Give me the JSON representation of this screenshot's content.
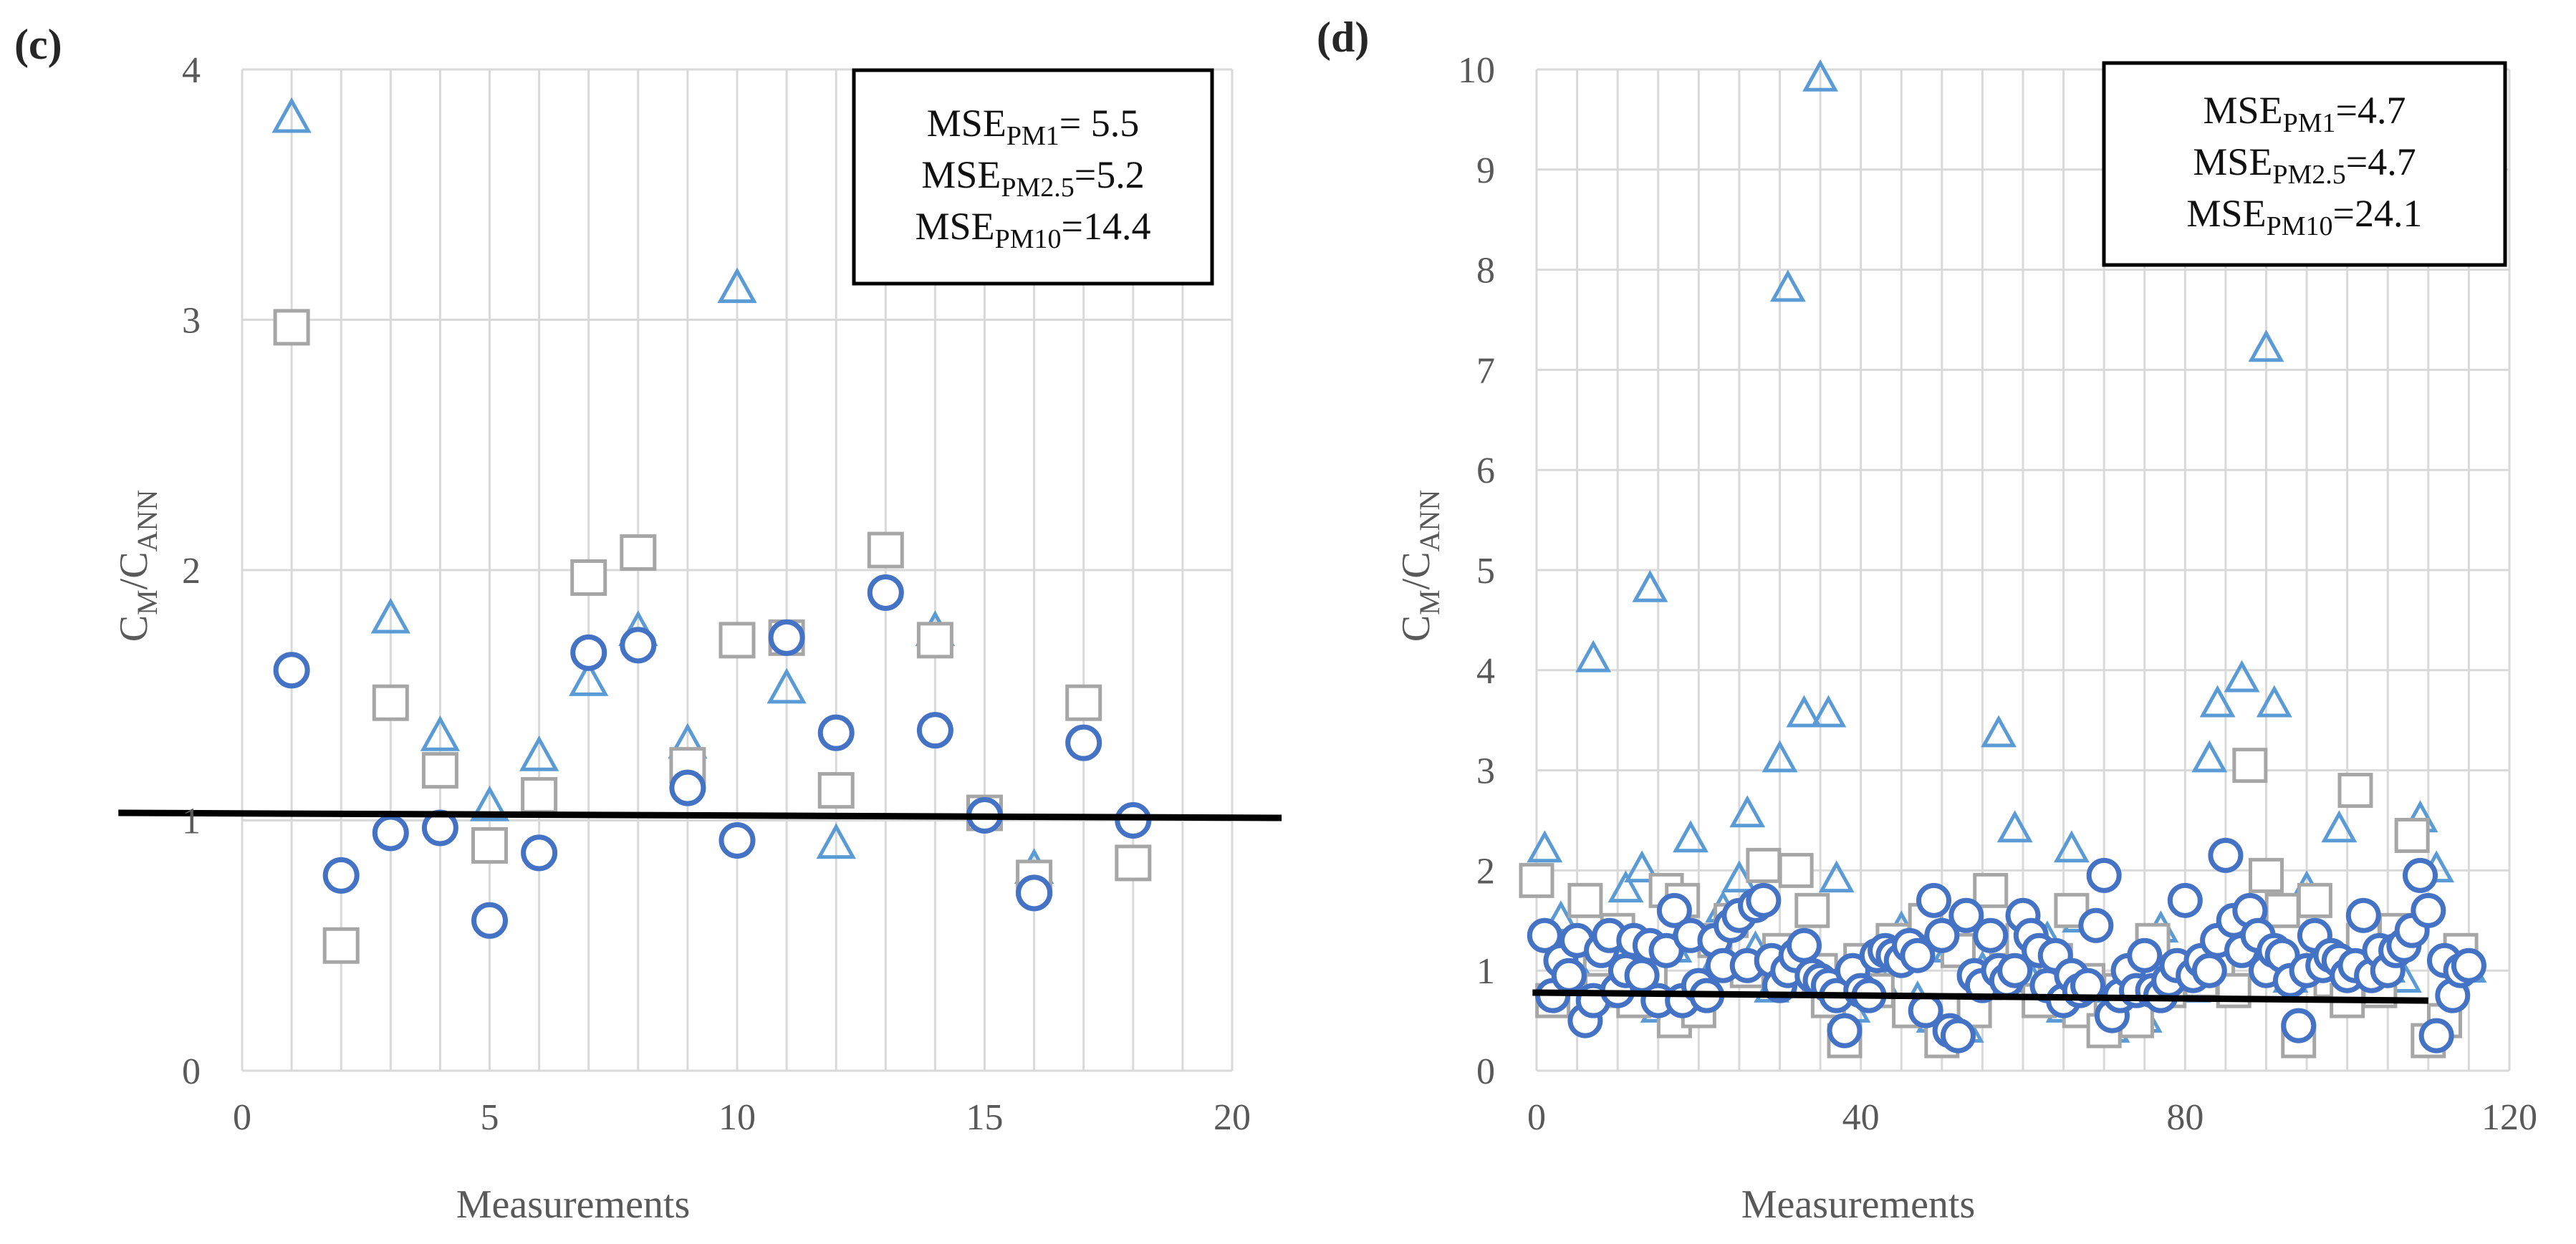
{
  "colors": {
    "pm1": "#5b9bd5",
    "pm25": "#a6a6a6",
    "pm10": "#4472c4",
    "trend": "#000000",
    "grid": "#d9d9d9"
  },
  "chart_data": [
    {
      "type": "scatter",
      "panel_label": "(c)",
      "xlabel": "Measurements",
      "ylabel_main": "C",
      "ylabel_sub1": "M",
      "ylabel_mid": "/C",
      "ylabel_sub2": "ANN",
      "xlim": [
        0,
        20
      ],
      "ylim": [
        0,
        4
      ],
      "xticks": [
        0,
        5,
        10,
        15,
        20
      ],
      "yticks": [
        0,
        1,
        2,
        3,
        4
      ],
      "grid": true,
      "mse": [
        {
          "base": "MSE",
          "sub": "PM1",
          "value": "= 5.5"
        },
        {
          "base": "MSE",
          "sub": "PM2.5",
          "value": "=5.2"
        },
        {
          "base": "MSE",
          "sub": "PM10",
          "value": "=14.4"
        }
      ],
      "series": [
        {
          "name": "PM1",
          "marker": "triangle",
          "x": [
            1,
            3,
            4,
            5,
            6,
            7,
            8,
            9,
            10,
            11,
            12,
            14,
            16
          ],
          "y": [
            3.8,
            1.8,
            1.33,
            1.05,
            1.25,
            1.55,
            1.75,
            1.3,
            3.12,
            1.52,
            0.9,
            1.75,
            0.8
          ]
        },
        {
          "name": "PM2.5",
          "marker": "square",
          "x": [
            1,
            2,
            3,
            4,
            5,
            6,
            7,
            8,
            9,
            10,
            11,
            12,
            13,
            14,
            15,
            16,
            17,
            18
          ],
          "y": [
            2.97,
            0.5,
            1.47,
            1.2,
            0.9,
            1.1,
            1.97,
            2.07,
            1.22,
            1.72,
            1.73,
            1.12,
            2.08,
            1.72,
            1.03,
            0.77,
            1.47,
            0.83
          ]
        },
        {
          "name": "PM10",
          "marker": "circle",
          "x": [
            1,
            2,
            3,
            4,
            5,
            6,
            7,
            8,
            9,
            10,
            11,
            12,
            13,
            14,
            15,
            16,
            17,
            18
          ],
          "y": [
            1.6,
            0.78,
            0.95,
            0.97,
            0.6,
            0.87,
            1.67,
            1.7,
            1.13,
            0.92,
            1.73,
            1.35,
            1.91,
            1.36,
            1.02,
            0.71,
            1.31,
            1.0
          ]
        }
      ],
      "trendline": {
        "x": [
          -2.5,
          21
        ],
        "y": [
          1.03,
          1.01
        ]
      }
    },
    {
      "type": "scatter",
      "panel_label": "(d)",
      "xlabel": "Measurements",
      "ylabel_main": "C",
      "ylabel_sub1": "M",
      "ylabel_mid": "/C",
      "ylabel_sub2": "ANN",
      "xlim": [
        0,
        120
      ],
      "ylim": [
        0,
        10
      ],
      "xticks": [
        0,
        40,
        80,
        120
      ],
      "yticks": [
        0,
        1,
        2,
        3,
        4,
        5,
        6,
        7,
        8,
        9,
        10
      ],
      "grid": true,
      "mse": [
        {
          "base": "MSE",
          "sub": "PM1",
          "value": "=4.7"
        },
        {
          "base": "MSE",
          "sub": "PM2.5",
          "value": "=4.7"
        },
        {
          "base": "MSE",
          "sub": "PM10",
          "value": "=24.1"
        }
      ],
      "series": [
        {
          "name": "PM1",
          "marker": "triangle",
          "x": [
            1,
            3,
            5,
            7,
            9,
            11,
            13,
            14,
            15,
            17,
            19,
            21,
            23,
            25,
            26,
            27,
            29,
            30,
            31,
            33,
            35,
            36,
            37,
            39,
            41,
            43,
            45,
            47,
            49,
            51,
            53,
            55,
            57,
            59,
            61,
            63,
            65,
            66,
            67,
            69,
            71,
            73,
            75,
            77,
            79,
            81,
            83,
            84,
            85,
            87,
            88,
            90,
            91,
            93,
            95,
            97,
            99,
            101,
            103,
            105,
            107,
            109,
            111,
            113,
            115
          ],
          "y": [
            2.2,
            1.5,
            1.0,
            4.1,
            1.3,
            1.8,
            2.0,
            4.8,
            0.6,
            1.2,
            2.3,
            0.9,
            1.6,
            1.9,
            2.55,
            1.2,
            0.8,
            3.1,
            7.8,
            3.55,
            9.9,
            3.55,
            1.9,
            0.6,
            1.1,
            0.8,
            1.4,
            0.7,
            0.5,
            1.2,
            0.4,
            1.0,
            3.35,
            2.4,
            0.9,
            1.3,
            0.6,
            2.2,
            1.5,
            0.8,
            0.4,
            0.6,
            0.5,
            1.4,
            0.9,
            0.8,
            3.1,
            3.65,
            1.2,
            3.9,
            1.6,
            7.2,
            3.65,
            0.9,
            1.8,
            1.2,
            2.4,
            0.8,
            1.3,
            1.0,
            0.9,
            2.5,
            2.0,
            1.1,
            1.0
          ]
        },
        {
          "name": "PM2.5",
          "marker": "square",
          "x": [
            0,
            2,
            4,
            6,
            8,
            10,
            12,
            14,
            16,
            17,
            18,
            20,
            22,
            24,
            26,
            28,
            30,
            31,
            32,
            34,
            35,
            36,
            38,
            40,
            42,
            44,
            46,
            48,
            50,
            52,
            54,
            56,
            57,
            58,
            60,
            62,
            64,
            66,
            67,
            68,
            70,
            72,
            74,
            76,
            78,
            80,
            82,
            84,
            86,
            88,
            90,
            92,
            94,
            96,
            98,
            100,
            101,
            102,
            104,
            106,
            108,
            110,
            112,
            114
          ],
          "y": [
            1.9,
            0.7,
            1.2,
            1.7,
            0.8,
            1.4,
            0.7,
            1.0,
            1.8,
            0.5,
            1.7,
            0.6,
            1.3,
            1.5,
            1.0,
            2.05,
            1.2,
            0.9,
            2.0,
            1.6,
            1.0,
            0.7,
            0.3,
            1.1,
            0.8,
            1.3,
            0.6,
            1.5,
            0.3,
            1.2,
            0.6,
            1.8,
            0.9,
            1.0,
            1.3,
            0.7,
            1.1,
            1.6,
            0.6,
            0.9,
            0.4,
            0.8,
            0.5,
            1.3,
            0.8,
            1.0,
            0.9,
            1.1,
            0.8,
            3.05,
            1.95,
            1.6,
            0.3,
            1.7,
            0.9,
            0.7,
            2.8,
            1.3,
            0.8,
            1.4,
            2.35,
            0.3,
            0.5,
            1.2
          ]
        },
        {
          "name": "PM10",
          "marker": "circle",
          "x": [
            1,
            2,
            3,
            4,
            5,
            6,
            7,
            8,
            9,
            10,
            11,
            12,
            13,
            14,
            15,
            16,
            17,
            18,
            19,
            20,
            21,
            22,
            23,
            24,
            25,
            26,
            27,
            28,
            29,
            30,
            31,
            32,
            33,
            34,
            35,
            36,
            37,
            38,
            39,
            40,
            41,
            42,
            43,
            44,
            45,
            46,
            47,
            48,
            49,
            50,
            51,
            52,
            53,
            54,
            55,
            56,
            57,
            58,
            59,
            60,
            61,
            62,
            63,
            64,
            65,
            66,
            67,
            68,
            69,
            70,
            71,
            72,
            73,
            74,
            75,
            76,
            77,
            78,
            79,
            80,
            81,
            82,
            83,
            84,
            85,
            86,
            87,
            88,
            89,
            90,
            91,
            92,
            93,
            94,
            95,
            96,
            97,
            98,
            99,
            100,
            101,
            102,
            103,
            104,
            105,
            106,
            107,
            108,
            109,
            110,
            111,
            112,
            113,
            114,
            115
          ],
          "y": [
            1.35,
            0.75,
            1.1,
            0.95,
            1.3,
            0.5,
            0.7,
            1.2,
            1.35,
            0.8,
            1.0,
            1.3,
            0.95,
            1.25,
            0.7,
            1.2,
            1.6,
            0.7,
            1.35,
            0.85,
            0.75,
            1.3,
            1.05,
            1.45,
            1.55,
            1.05,
            1.65,
            1.7,
            1.1,
            0.85,
            1.0,
            1.15,
            1.25,
            0.95,
            0.9,
            0.85,
            0.75,
            0.4,
            1.0,
            0.8,
            0.75,
            1.15,
            1.2,
            1.15,
            1.1,
            1.25,
            1.15,
            0.6,
            1.7,
            1.35,
            0.4,
            0.35,
            1.55,
            0.95,
            0.85,
            1.35,
            1.0,
            0.9,
            1.0,
            1.55,
            1.35,
            1.2,
            0.85,
            1.15,
            0.7,
            0.95,
            0.8,
            0.85,
            1.45,
            1.95,
            0.55,
            0.75,
            1.0,
            0.8,
            1.15,
            0.8,
            0.75,
            0.9,
            1.05,
            1.7,
            0.95,
            1.1,
            1.0,
            1.3,
            2.15,
            1.5,
            1.2,
            1.6,
            1.35,
            1.0,
            1.2,
            1.15,
            0.9,
            0.45,
            1.0,
            1.35,
            1.05,
            1.15,
            1.1,
            0.95,
            1.05,
            1.55,
            0.95,
            1.2,
            1.0,
            1.2,
            1.25,
            1.4,
            1.95,
            1.6,
            0.35,
            1.1,
            0.75,
            1.0,
            1.05
          ]
        }
      ],
      "trendline": {
        "x": [
          -0.5,
          110
        ],
        "y": [
          0.78,
          0.7
        ]
      }
    }
  ]
}
